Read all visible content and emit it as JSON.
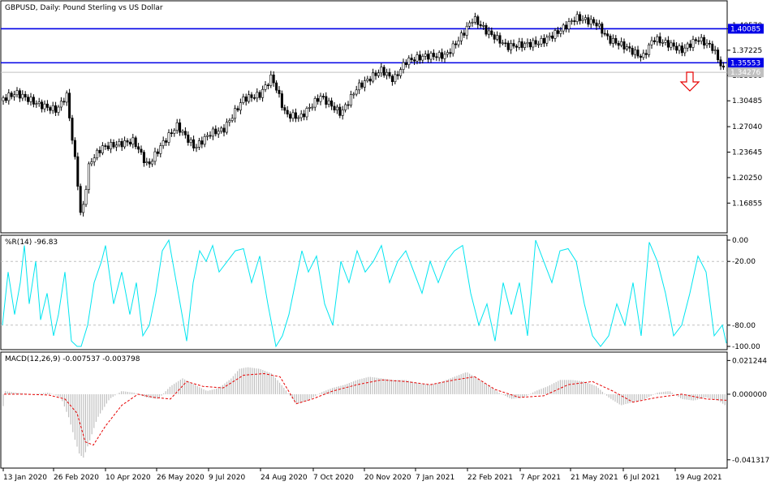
{
  "chart_data": [
    {
      "type": "candlestick",
      "title": "GBPUSD, Daily:  Pound Sterling vs US Dollar",
      "ylim": [
        1.13,
        1.437
      ],
      "y_ticks": [
        1.40085,
        1.37225,
        1.3386,
        1.30485,
        1.2704,
        1.23645,
        1.2025,
        1.16855
      ],
      "y_tick_labels": [
        "1.40085",
        "1.37225",
        "1.33860",
        "1.30485",
        "1.27040",
        "1.23645",
        "1.20250",
        "1.16855"
      ],
      "top_partial_tick_label": "1.40570",
      "price_labels": [
        {
          "value": 1.40085,
          "label": "1.40085",
          "color": "#0000e6"
        },
        {
          "value": 1.35553,
          "label": "1.35553",
          "color": "#0000e6"
        },
        {
          "value": 1.34276,
          "label": "1.34276",
          "color": "#c0c0c0"
        }
      ],
      "horizontal_lines": [
        {
          "value": 1.40085,
          "color": "#0000e6"
        },
        {
          "value": 1.35553,
          "color": "#0000e6"
        },
        {
          "value": 1.34276,
          "color": "#c0c0c0"
        }
      ],
      "annotation": {
        "type": "down-arrow",
        "color": "#e60000"
      },
      "anchors": [
        [
          0,
          1.303
        ],
        [
          20,
          1.313
        ],
        [
          45,
          1.302
        ],
        [
          70,
          1.295
        ],
        [
          82,
          1.315
        ],
        [
          95,
          1.205
        ],
        [
          100,
          1.145
        ],
        [
          110,
          1.22
        ],
        [
          125,
          1.24
        ],
        [
          145,
          1.245
        ],
        [
          165,
          1.252
        ],
        [
          182,
          1.22
        ],
        [
          200,
          1.25
        ],
        [
          218,
          1.272
        ],
        [
          240,
          1.24
        ],
        [
          260,
          1.26
        ],
        [
          275,
          1.265
        ],
        [
          300,
          1.31
        ],
        [
          320,
          1.315
        ],
        [
          335,
          1.338
        ],
        [
          352,
          1.285
        ],
        [
          370,
          1.28
        ],
        [
          395,
          1.31
        ],
        [
          420,
          1.29
        ],
        [
          440,
          1.325
        ],
        [
          470,
          1.345
        ],
        [
          485,
          1.33
        ],
        [
          500,
          1.355
        ],
        [
          525,
          1.365
        ],
        [
          550,
          1.368
        ],
        [
          570,
          1.395
        ],
        [
          583,
          1.415
        ],
        [
          600,
          1.395
        ],
        [
          625,
          1.375
        ],
        [
          645,
          1.38
        ],
        [
          665,
          1.385
        ],
        [
          690,
          1.4
        ],
        [
          710,
          1.415
        ],
        [
          735,
          1.405
        ],
        [
          750,
          1.385
        ],
        [
          770,
          1.378
        ],
        [
          792,
          1.365
        ],
        [
          805,
          1.39
        ],
        [
          825,
          1.38
        ],
        [
          840,
          1.37
        ],
        [
          860,
          1.385
        ],
        [
          878,
          1.375
        ],
        [
          892,
          1.345
        ]
      ]
    },
    {
      "type": "line",
      "title": "%R(14) -96.83",
      "ylim": [
        -100,
        0
      ],
      "y_tick_labels": [
        "0.00",
        "-20.00",
        "-80.00",
        "-100.00"
      ],
      "y_ticks": [
        0,
        -20,
        -80,
        -100
      ],
      "levels": [
        -20,
        -80
      ],
      "series": [
        {
          "color": "#00e5f0",
          "x": [
            3,
            10,
            18,
            25,
            30,
            36,
            44,
            50,
            58,
            66,
            72,
            80,
            88,
            95,
            100,
            108,
            116,
            125,
            130,
            140,
            150,
            160,
            168,
            176,
            184,
            192,
            200,
            208,
            215,
            222,
            230,
            238,
            246,
            254,
            262,
            270,
            280,
            290,
            300,
            310,
            320,
            330,
            340,
            348,
            356,
            364,
            372,
            380,
            390,
            400,
            410,
            420,
            430,
            440,
            450,
            460,
            470,
            480,
            490,
            500,
            510,
            520,
            530,
            540,
            550,
            560,
            570,
            580,
            590,
            600,
            610,
            620,
            630,
            640,
            650,
            660,
            670,
            680,
            690,
            700,
            710,
            720,
            730,
            740,
            750,
            760,
            770,
            780,
            790,
            800,
            810,
            820,
            830,
            840,
            850,
            860,
            870,
            880,
            890,
            895
          ],
          "values": [
            -80,
            -30,
            -70,
            -40,
            -5,
            -60,
            -20,
            -75,
            -50,
            -90,
            -70,
            -30,
            -95,
            -100,
            -100,
            -80,
            -40,
            -20,
            -5,
            -60,
            -30,
            -70,
            -40,
            -90,
            -80,
            -50,
            -10,
            0,
            -30,
            -60,
            -95,
            -40,
            -10,
            -20,
            -5,
            -30,
            -20,
            -10,
            -8,
            -40,
            -15,
            -60,
            -100,
            -90,
            -70,
            -40,
            -10,
            -30,
            -15,
            -60,
            -80,
            -20,
            -40,
            -10,
            -30,
            -20,
            -5,
            -40,
            -20,
            -10,
            -30,
            -50,
            -20,
            -40,
            -20,
            -10,
            -5,
            -50,
            -80,
            -60,
            -95,
            -40,
            -70,
            -40,
            -90,
            0,
            -20,
            -40,
            -10,
            -8,
            -20,
            -60,
            -90,
            -100,
            -90,
            -60,
            -80,
            -40,
            -90,
            -2,
            -20,
            -50,
            -90,
            -80,
            -50,
            -15,
            -30,
            -90,
            -80,
            -97
          ]
        }
      ]
    },
    {
      "type": "bar",
      "title": "MACD(12,26,9) -0.007537 -0.003798",
      "ylim": [
        -0.045,
        0.0245
      ],
      "y_tick_labels": [
        "0.021244",
        "0.000000",
        "-0.041317"
      ],
      "y_ticks": [
        0.021244,
        0.0,
        -0.041317
      ],
      "series": [
        {
          "name": "",
          "color": "#c0c0c0",
          "x": [
            5,
            20,
            40,
            60,
            75,
            85,
            92,
            98,
            103,
            110,
            120,
            135,
            150,
            165,
            180,
            195,
            210,
            225,
            240,
            255,
            270,
            285,
            295,
            305,
            320,
            335,
            350,
            365,
            380,
            395,
            410,
            425,
            440,
            455,
            470,
            485,
            500,
            515,
            530,
            545,
            560,
            575,
            585,
            600,
            615,
            630,
            645,
            660,
            675,
            690,
            705,
            720,
            735,
            750,
            765,
            780,
            795,
            810,
            825,
            840,
            855,
            870,
            885,
            895
          ],
          "values": [
            0.002,
            0.001,
            0.0,
            0.001,
            -0.002,
            -0.015,
            -0.028,
            -0.038,
            -0.04,
            -0.03,
            -0.015,
            -0.003,
            0.002,
            0.001,
            -0.002,
            -0.003,
            0.005,
            0.01,
            0.006,
            0.002,
            0.004,
            0.01,
            0.016,
            0.017,
            0.016,
            0.013,
            0.004,
            -0.006,
            -0.004,
            0.001,
            0.004,
            0.006,
            0.009,
            0.011,
            0.01,
            0.009,
            0.009,
            0.007,
            0.006,
            0.008,
            0.011,
            0.014,
            0.011,
            0.006,
            0.001,
            -0.003,
            -0.002,
            0.002,
            0.005,
            0.009,
            0.009,
            0.008,
            0.005,
            -0.002,
            -0.007,
            -0.005,
            -0.003,
            0.001,
            0.002,
            -0.003,
            -0.004,
            -0.002,
            -0.004,
            -0.0075
          ]
        },
        {
          "name": "",
          "type": "line",
          "color": "#e60000",
          "x": [
            5,
            30,
            60,
            80,
            95,
            105,
            115,
            130,
            150,
            170,
            190,
            210,
            230,
            250,
            275,
            300,
            325,
            345,
            365,
            385,
            410,
            440,
            470,
            500,
            530,
            560,
            585,
            610,
            640,
            670,
            700,
            730,
            755,
            780,
            810,
            840,
            870,
            895
          ],
          "values": [
            0.0,
            0.0,
            -0.0005,
            -0.003,
            -0.012,
            -0.03,
            -0.032,
            -0.02,
            -0.007,
            0.0,
            -0.002,
            -0.003,
            0.008,
            0.005,
            0.004,
            0.012,
            0.013,
            0.011,
            -0.006,
            -0.003,
            0.002,
            0.006,
            0.009,
            0.008,
            0.006,
            0.009,
            0.011,
            0.003,
            -0.002,
            -0.001,
            0.006,
            0.008,
            0.002,
            -0.005,
            -0.002,
            0.0,
            -0.003,
            -0.0038
          ]
        }
      ]
    }
  ],
  "x_axis": {
    "labels": [
      "13 Jan 2020",
      "26 Feb 2020",
      "10 Apr 2020",
      "26 May 2020",
      "9 Jul 2020",
      "24 Aug 2020",
      "7 Oct 2020",
      "20 Nov 2020",
      "7 Jan 2021",
      "22 Feb 2021",
      "7 Apr 2021",
      "21 May 2021",
      "6 Jul 2021",
      "19 Aug 2021"
    ]
  },
  "colors": {
    "bull_candle": "#000000",
    "bear_candle": "#000000",
    "support_resistance": "#0000e6",
    "wpr_line": "#00e5f0",
    "macd_histogram": "#c0c0c0",
    "macd_signal": "#e60000",
    "level_lines": "#c0c0c0"
  }
}
